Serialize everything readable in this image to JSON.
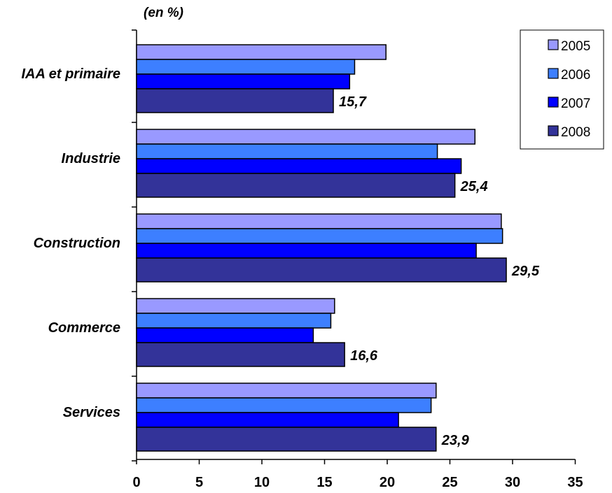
{
  "chart_data": {
    "type": "bar",
    "orientation": "horizontal",
    "unit_label": "(en %)",
    "categories": [
      "IAA et primaire",
      "Industrie",
      "Construction",
      "Commerce",
      "Services"
    ],
    "series": [
      {
        "name": "2005",
        "color": "#9999ff",
        "values": [
          19.9,
          27.0,
          29.1,
          15.8,
          23.9
        ]
      },
      {
        "name": "2006",
        "color": "#3d7fff",
        "values": [
          17.4,
          24.0,
          29.2,
          15.5,
          23.5
        ]
      },
      {
        "name": "2007",
        "color": "#0000ff",
        "values": [
          17.0,
          25.9,
          27.1,
          14.1,
          20.9
        ]
      },
      {
        "name": "2008",
        "color": "#333399",
        "values": [
          15.7,
          25.4,
          29.5,
          16.6,
          23.9
        ]
      }
    ],
    "data_labels": {
      "series": "2008",
      "texts": [
        "15,7",
        "25,4",
        "29,5",
        "16,6",
        "23,9"
      ]
    },
    "xlim": [
      0,
      35
    ],
    "xticks": [
      "0",
      "5",
      "10",
      "15",
      "20",
      "25",
      "30",
      "35"
    ],
    "grid": false,
    "legend_position": "top-right"
  }
}
